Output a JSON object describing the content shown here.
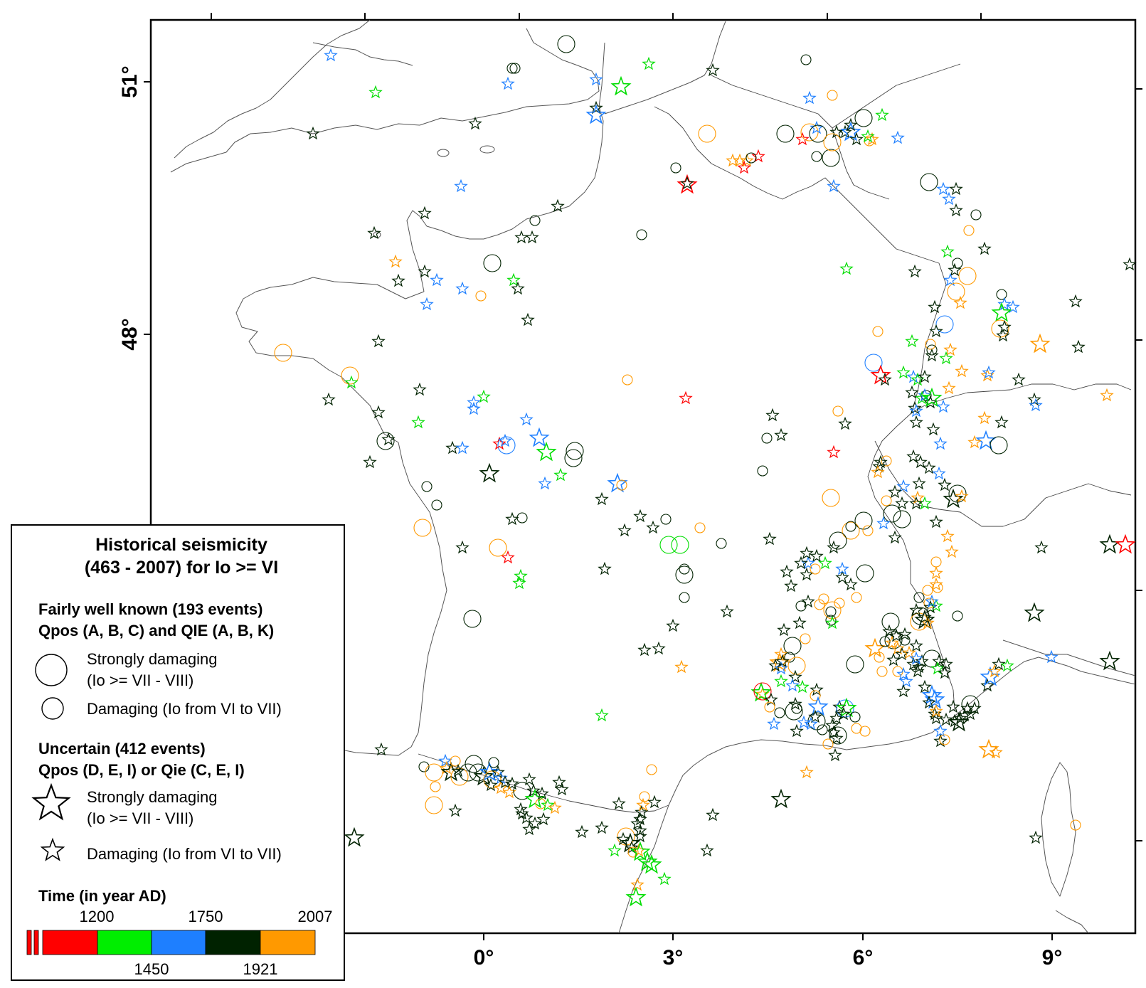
{
  "map": {
    "lat_labels": [
      "51°",
      "48°"
    ],
    "lon_labels": [
      "0°",
      "3°",
      "6°",
      "9°"
    ],
    "colors": {
      "period_1200": "#ff0000",
      "period_1450": "#00dd00",
      "period_1750": "#1e7fff",
      "period_1921": "#002200",
      "period_2007": "#ff9900",
      "old": "#000000"
    }
  },
  "legend": {
    "title_line1": "Historical seismicity",
    "title_line2": "(463 - 2007) for Io >= VI",
    "fairly_header1": "Fairly well known (193 events)",
    "fairly_header2": "Qpos (A, B, C) and QIE (A, B, K)",
    "strong_circle_line1": "Strongly damaging",
    "strong_circle_line2": "(Io >= VII - VIII)",
    "damaging_circle": "Damaging (Io from VI to VII)",
    "uncertain_header1": "Uncertain (412 events)",
    "uncertain_header2": "Qpos (D, E, I) or Qie (C, E, I)",
    "strong_star_line1": "Strongly damaging",
    "strong_star_line2": "(Io >= VII - VIII)",
    "damaging_star": "Damaging (Io from VI to VII)",
    "time_title": "Time (in year AD)",
    "time_ticks_top": [
      "1200",
      "1750",
      "2007"
    ],
    "time_ticks_bottom": [
      "1450",
      "1921"
    ]
  }
}
